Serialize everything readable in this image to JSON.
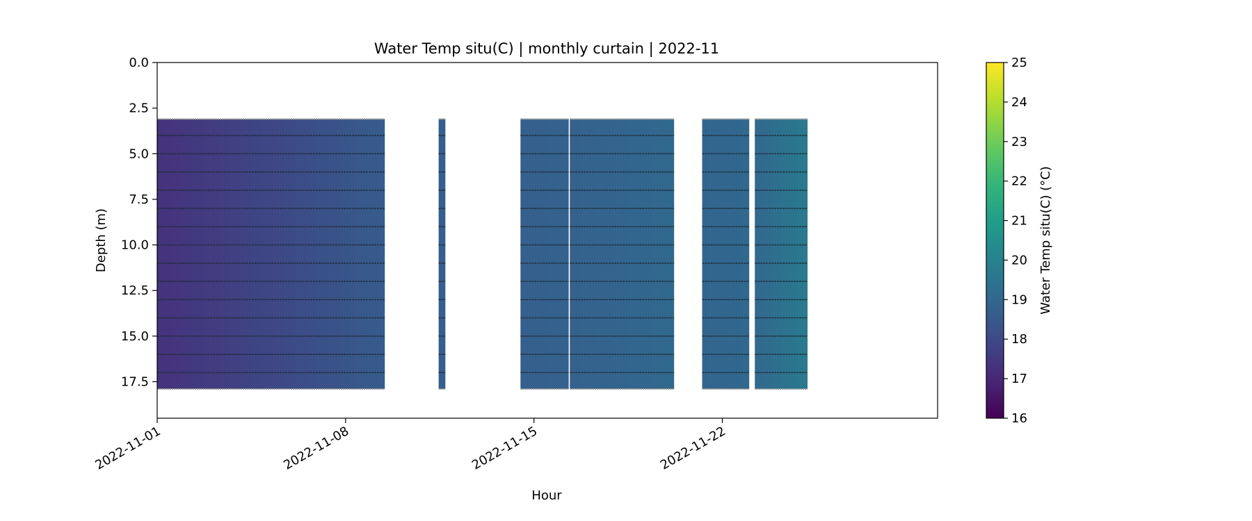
{
  "chart_data": {
    "type": "heatmap",
    "title": "Water Temp situ(C) | monthly curtain | 2022-11",
    "xlabel": "Hour",
    "ylabel": "Depth (m)",
    "x_axis": {
      "type": "date",
      "range": [
        "2022-11-01",
        "2022-11-30"
      ],
      "ticks": [
        "2022-11-01",
        "2022-11-08",
        "2022-11-15",
        "2022-11-22"
      ]
    },
    "y_axis": {
      "inverted": true,
      "range": [
        0,
        19.5
      ],
      "ticks": [
        "0.0",
        "2.5",
        "5.0",
        "7.5",
        "10.0",
        "12.5",
        "15.0",
        "17.5"
      ]
    },
    "grid": false,
    "colorbar": {
      "label": "Water Temp situ(C) (°C)",
      "colormap": "viridis",
      "range": [
        16,
        25
      ],
      "ticks": [
        "16",
        "17",
        "18",
        "19",
        "20",
        "21",
        "22",
        "23",
        "24",
        "25"
      ]
    },
    "sensor_depths": [
      4,
      5,
      6,
      7,
      8,
      9,
      10,
      11,
      12,
      13,
      14,
      15,
      16,
      17
    ],
    "profile_depth_range": [
      3.1,
      17.9
    ],
    "segments": [
      {
        "start": "2022-11-01T00:00",
        "end": "2022-11-09T11:00",
        "temp_start": 17.3,
        "temp_end": 18.6
      },
      {
        "start": "2022-11-11T11:00",
        "end": "2022-11-11T17:00",
        "temp_start": 18.7,
        "temp_end": 18.7
      },
      {
        "start": "2022-11-14T12:00",
        "end": "2022-11-16T07:00",
        "temp_start": 18.7,
        "temp_end": 18.8
      },
      {
        "start": "2022-11-16T08:00",
        "end": "2022-11-20T05:00",
        "temp_start": 18.8,
        "temp_end": 19.0
      },
      {
        "start": "2022-11-21T06:00",
        "end": "2022-11-23T00:00",
        "temp_start": 18.9,
        "temp_end": 19.0
      },
      {
        "start": "2022-11-23T05:00",
        "end": "2022-11-25T04:00",
        "temp_start": 19.0,
        "temp_end": 19.7
      }
    ]
  }
}
